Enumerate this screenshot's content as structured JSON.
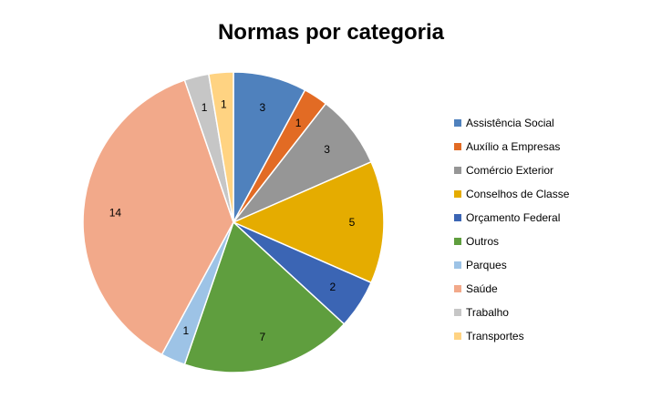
{
  "chart_data": {
    "type": "pie",
    "title": "Normas por categoria",
    "legend_position": "right",
    "categories": [
      "Assistência Social",
      "Auxílio a Empresas",
      "Comércio Exterior",
      "Conselhos de Classe",
      "Orçamento Federal",
      "Outros",
      "Parques",
      "Saúde",
      "Trabalho",
      "Transportes"
    ],
    "values": [
      3,
      1,
      3,
      5,
      2,
      7,
      1,
      14,
      1,
      1
    ],
    "colors": [
      "#4F81BD",
      "#E26B24",
      "#969696",
      "#E5AC00",
      "#3B65B4",
      "#5F9E3E",
      "#9DC3E6",
      "#F2A98A",
      "#C6C6C6",
      "#FFD382"
    ]
  }
}
